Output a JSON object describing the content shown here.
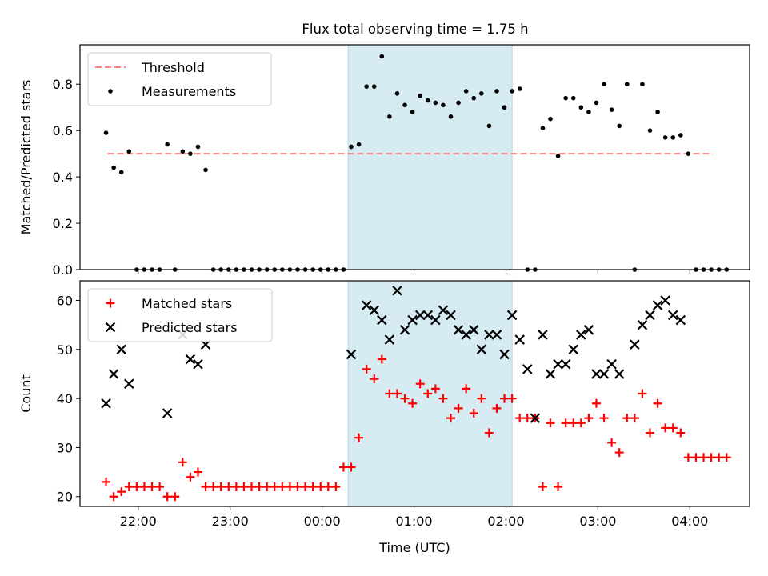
{
  "title": "Flux total observing time = 1.75 h",
  "colors": {
    "threshold": "#ff7f7f",
    "measurement": "#000000",
    "matched": "#ff0000",
    "predicted": "#000000",
    "highlight": "#add8e6"
  },
  "chart_data": [
    {
      "type": "scatter",
      "panel": "top",
      "ylabel": "Matched/Predicted stars",
      "xlabel": "",
      "xlim": [
        "21:22",
        "04:39"
      ],
      "ylim": [
        0,
        0.97
      ],
      "yticks": [
        0.0,
        0.2,
        0.4,
        0.6,
        0.8
      ],
      "ytick_labels": [
        "0.0",
        "0.2",
        "0.4",
        "0.6",
        "0.8"
      ],
      "highlight_span": [
        "00:17",
        "02:04"
      ],
      "legend": {
        "location": "upper left",
        "entries": [
          "Threshold",
          "Measurements"
        ]
      },
      "threshold": {
        "name": "Threshold",
        "value": 0.5,
        "x_range": [
          "21:40",
          "04:15"
        ],
        "style": "dashed"
      },
      "series": [
        {
          "name": "Measurements",
          "marker": "dot",
          "points": [
            [
              "21:39",
              0.59
            ],
            [
              "21:44",
              0.44
            ],
            [
              "21:49",
              0.42
            ],
            [
              "21:54",
              0.51
            ],
            [
              "21:59",
              0.0
            ],
            [
              "22:04",
              0.0
            ],
            [
              "22:09",
              0.0
            ],
            [
              "22:14",
              0.0
            ],
            [
              "22:19",
              0.54
            ],
            [
              "22:24",
              0.0
            ],
            [
              "22:29",
              0.51
            ],
            [
              "22:34",
              0.5
            ],
            [
              "22:39",
              0.53
            ],
            [
              "22:44",
              0.43
            ],
            [
              "22:49",
              0.0
            ],
            [
              "22:54",
              0.0
            ],
            [
              "22:59",
              0.0
            ],
            [
              "23:04",
              0.0
            ],
            [
              "23:09",
              0.0
            ],
            [
              "23:14",
              0.0
            ],
            [
              "23:19",
              0.0
            ],
            [
              "23:24",
              0.0
            ],
            [
              "23:29",
              0.0
            ],
            [
              "23:34",
              0.0
            ],
            [
              "23:39",
              0.0
            ],
            [
              "23:44",
              0.0
            ],
            [
              "23:49",
              0.0
            ],
            [
              "23:54",
              0.0
            ],
            [
              "23:59",
              0.0
            ],
            [
              "00:04",
              0.0
            ],
            [
              "00:09",
              0.0
            ],
            [
              "00:14",
              0.0
            ],
            [
              "00:19",
              0.53
            ],
            [
              "00:24",
              0.54
            ],
            [
              "00:29",
              0.79
            ],
            [
              "00:34",
              0.79
            ],
            [
              "00:39",
              0.92
            ],
            [
              "00:44",
              0.66
            ],
            [
              "00:49",
              0.76
            ],
            [
              "00:54",
              0.71
            ],
            [
              "00:59",
              0.68
            ],
            [
              "01:04",
              0.75
            ],
            [
              "01:09",
              0.73
            ],
            [
              "01:14",
              0.72
            ],
            [
              "01:19",
              0.71
            ],
            [
              "01:24",
              0.66
            ],
            [
              "01:29",
              0.72
            ],
            [
              "01:34",
              0.77
            ],
            [
              "01:39",
              0.74
            ],
            [
              "01:44",
              0.76
            ],
            [
              "01:49",
              0.62
            ],
            [
              "01:54",
              0.77
            ],
            [
              "01:59",
              0.7
            ],
            [
              "02:04",
              0.77
            ],
            [
              "02:09",
              0.78
            ],
            [
              "02:14",
              0.0
            ],
            [
              "02:19",
              0.0
            ],
            [
              "02:24",
              0.61
            ],
            [
              "02:29",
              0.65
            ],
            [
              "02:34",
              0.49
            ],
            [
              "02:39",
              0.74
            ],
            [
              "02:44",
              0.74
            ],
            [
              "02:49",
              0.7
            ],
            [
              "02:54",
              0.68
            ],
            [
              "02:59",
              0.72
            ],
            [
              "03:04",
              0.8
            ],
            [
              "03:09",
              0.69
            ],
            [
              "03:14",
              0.62
            ],
            [
              "03:19",
              0.8
            ],
            [
              "03:24",
              0.0
            ],
            [
              "03:29",
              0.8
            ],
            [
              "03:34",
              0.6
            ],
            [
              "03:39",
              0.68
            ],
            [
              "03:44",
              0.57
            ],
            [
              "03:49",
              0.57
            ],
            [
              "03:54",
              0.58
            ],
            [
              "03:59",
              0.5
            ],
            [
              "04:04",
              0.0
            ],
            [
              "04:09",
              0.0
            ],
            [
              "04:14",
              0.0
            ],
            [
              "04:19",
              0.0
            ],
            [
              "04:24",
              0.0
            ]
          ]
        }
      ]
    },
    {
      "type": "scatter",
      "panel": "bottom",
      "xlabel": "Time (UTC)",
      "ylabel": "Count",
      "xlim": [
        "21:22",
        "04:39"
      ],
      "ylim": [
        18,
        64
      ],
      "xticks": [
        "22:00",
        "23:00",
        "00:00",
        "01:00",
        "02:00",
        "03:00",
        "04:00"
      ],
      "yticks": [
        20,
        30,
        40,
        50,
        60
      ],
      "ytick_labels": [
        "20",
        "30",
        "40",
        "50",
        "60"
      ],
      "highlight_span": [
        "00:17",
        "02:04"
      ],
      "legend": {
        "location": "upper left",
        "entries": [
          "Matched stars",
          "Predicted stars"
        ]
      },
      "series": [
        {
          "name": "Matched stars",
          "marker": "plus",
          "points": [
            [
              "21:39",
              23
            ],
            [
              "21:44",
              20
            ],
            [
              "21:49",
              21
            ],
            [
              "21:54",
              22
            ],
            [
              "21:59",
              22
            ],
            [
              "22:04",
              22
            ],
            [
              "22:09",
              22
            ],
            [
              "22:14",
              22
            ],
            [
              "22:19",
              20
            ],
            [
              "22:24",
              20
            ],
            [
              "22:29",
              27
            ],
            [
              "22:34",
              24
            ],
            [
              "22:39",
              25
            ],
            [
              "22:44",
              22
            ],
            [
              "22:49",
              22
            ],
            [
              "22:54",
              22
            ],
            [
              "22:59",
              22
            ],
            [
              "23:04",
              22
            ],
            [
              "23:09",
              22
            ],
            [
              "23:14",
              22
            ],
            [
              "23:19",
              22
            ],
            [
              "23:24",
              22
            ],
            [
              "23:29",
              22
            ],
            [
              "23:34",
              22
            ],
            [
              "23:39",
              22
            ],
            [
              "23:44",
              22
            ],
            [
              "23:49",
              22
            ],
            [
              "23:54",
              22
            ],
            [
              "23:59",
              22
            ],
            [
              "00:04",
              22
            ],
            [
              "00:09",
              22
            ],
            [
              "00:14",
              26
            ],
            [
              "00:19",
              26
            ],
            [
              "00:24",
              32
            ],
            [
              "00:29",
              46
            ],
            [
              "00:34",
              44
            ],
            [
              "00:39",
              48
            ],
            [
              "00:44",
              41
            ],
            [
              "00:49",
              41
            ],
            [
              "00:54",
              40
            ],
            [
              "00:59",
              39
            ],
            [
              "01:04",
              43
            ],
            [
              "01:09",
              41
            ],
            [
              "01:14",
              42
            ],
            [
              "01:19",
              40
            ],
            [
              "01:24",
              36
            ],
            [
              "01:29",
              38
            ],
            [
              "01:34",
              42
            ],
            [
              "01:39",
              37
            ],
            [
              "01:44",
              40
            ],
            [
              "01:49",
              33
            ],
            [
              "01:54",
              38
            ],
            [
              "01:59",
              40
            ],
            [
              "02:04",
              40
            ],
            [
              "02:09",
              36
            ],
            [
              "02:14",
              36
            ],
            [
              "02:19",
              36
            ],
            [
              "02:24",
              22
            ],
            [
              "02:29",
              35
            ],
            [
              "02:34",
              22
            ],
            [
              "02:39",
              35
            ],
            [
              "02:44",
              35
            ],
            [
              "02:49",
              35
            ],
            [
              "02:54",
              36
            ],
            [
              "02:59",
              39
            ],
            [
              "03:04",
              36
            ],
            [
              "03:09",
              31
            ],
            [
              "03:14",
              29
            ],
            [
              "03:19",
              36
            ],
            [
              "03:24",
              36
            ],
            [
              "03:29",
              41
            ],
            [
              "03:34",
              33
            ],
            [
              "03:39",
              39
            ],
            [
              "03:44",
              34
            ],
            [
              "03:49",
              34
            ],
            [
              "03:54",
              33
            ],
            [
              "03:59",
              28
            ],
            [
              "04:04",
              28
            ],
            [
              "04:09",
              28
            ],
            [
              "04:14",
              28
            ],
            [
              "04:19",
              28
            ],
            [
              "04:24",
              28
            ]
          ]
        },
        {
          "name": "Predicted stars",
          "marker": "x",
          "points": [
            [
              "21:39",
              39
            ],
            [
              "21:44",
              45
            ],
            [
              "21:49",
              50
            ],
            [
              "21:54",
              43
            ],
            [
              "22:19",
              37
            ],
            [
              "22:29",
              53
            ],
            [
              "22:34",
              48
            ],
            [
              "22:39",
              47
            ],
            [
              "22:44",
              51
            ],
            [
              "00:19",
              49
            ],
            [
              "00:29",
              59
            ],
            [
              "00:34",
              58
            ],
            [
              "00:39",
              56
            ],
            [
              "00:44",
              52
            ],
            [
              "00:49",
              62
            ],
            [
              "00:54",
              54
            ],
            [
              "00:59",
              56
            ],
            [
              "01:04",
              57
            ],
            [
              "01:09",
              57
            ],
            [
              "01:14",
              56
            ],
            [
              "01:19",
              58
            ],
            [
              "01:24",
              57
            ],
            [
              "01:29",
              54
            ],
            [
              "01:34",
              53
            ],
            [
              "01:39",
              54
            ],
            [
              "01:44",
              50
            ],
            [
              "01:49",
              53
            ],
            [
              "01:54",
              53
            ],
            [
              "01:59",
              49
            ],
            [
              "02:04",
              57
            ],
            [
              "02:09",
              52
            ],
            [
              "02:14",
              46
            ],
            [
              "02:19",
              36
            ],
            [
              "02:24",
              53
            ],
            [
              "02:29",
              45
            ],
            [
              "02:34",
              47
            ],
            [
              "02:39",
              47
            ],
            [
              "02:44",
              50
            ],
            [
              "02:49",
              53
            ],
            [
              "02:54",
              54
            ],
            [
              "02:59",
              45
            ],
            [
              "03:04",
              45
            ],
            [
              "03:09",
              47
            ],
            [
              "03:14",
              45
            ],
            [
              "03:24",
              51
            ],
            [
              "03:29",
              55
            ],
            [
              "03:34",
              57
            ],
            [
              "03:39",
              59
            ],
            [
              "03:44",
              60
            ],
            [
              "03:49",
              57
            ],
            [
              "03:54",
              56
            ]
          ]
        }
      ]
    }
  ]
}
